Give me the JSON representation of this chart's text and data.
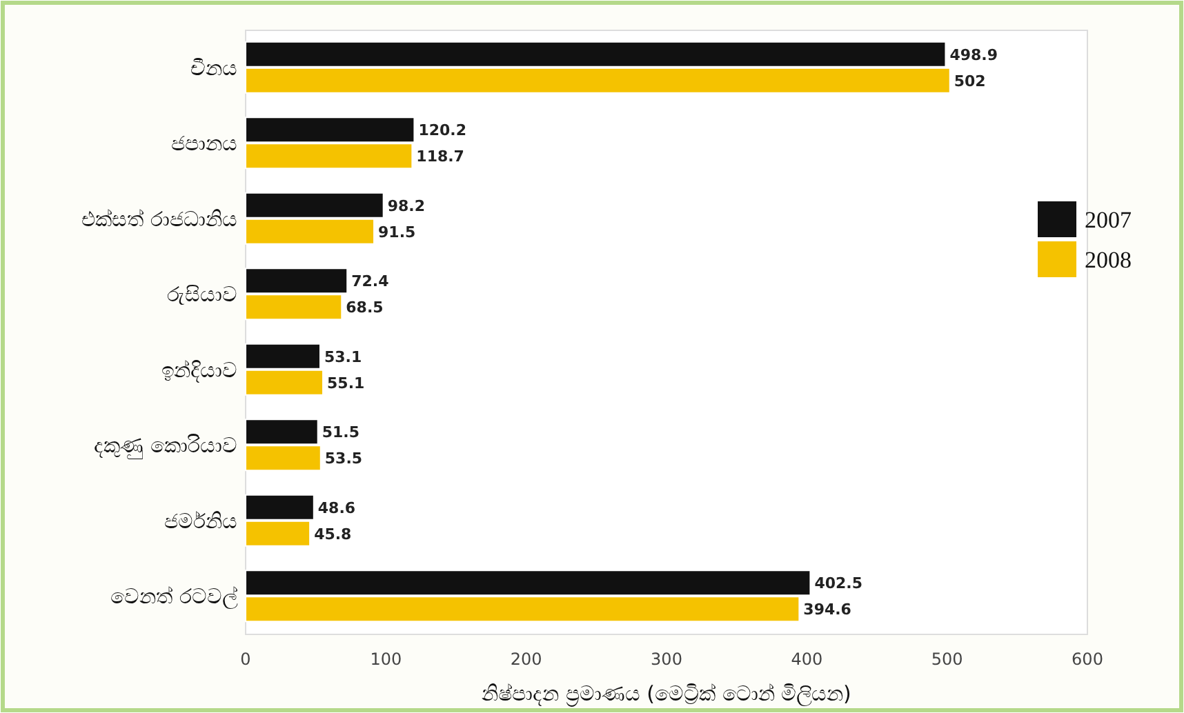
{
  "chart_data": {
    "type": "bar",
    "orientation": "horizontal",
    "categories": [
      "චීනය",
      "ජපානය",
      "එක්සත් රාජධානිය",
      "රුසියාව",
      "ඉන්දියාව",
      "දකුණු කොරියාව",
      "ජර්මනිය",
      "වෙනත් රටවල්"
    ],
    "series": [
      {
        "name": "2007",
        "color": "#111111",
        "values": [
          498.9,
          120.2,
          98.2,
          72.4,
          53.1,
          51.5,
          48.6,
          402.5
        ]
      },
      {
        "name": "2008",
        "color": "#f5c200",
        "values": [
          502,
          118.7,
          91.5,
          68.5,
          55.1,
          53.5,
          45.8,
          394.6
        ]
      }
    ],
    "xlim": [
      0,
      600
    ],
    "xticks": [
      0,
      100,
      200,
      300,
      400,
      500,
      600
    ],
    "xlabel": "නිෂ්පාදන ප්‍රමාණය (මෙට්‍රික් ටොන් මිලියන)",
    "data_labels": true,
    "legend": "right"
  }
}
